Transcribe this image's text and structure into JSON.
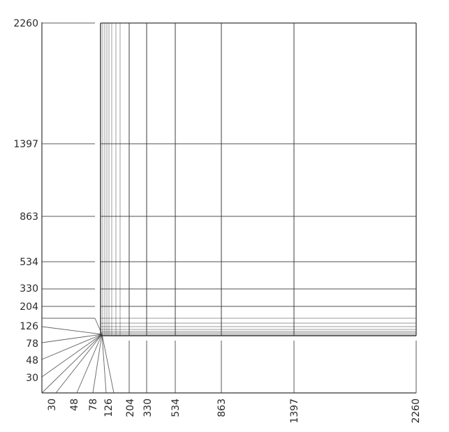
{
  "diagram": {
    "y_labels": [
      "2260",
      "1397",
      "863",
      "534",
      "330",
      "204",
      "126",
      "78",
      "48",
      "30"
    ],
    "x_labels": [
      "30",
      "48",
      "78",
      "126",
      "204",
      "330",
      "534",
      "863",
      "1397",
      "2260"
    ],
    "colors": {
      "ink": "#2a2a2a",
      "grid": "#3c3c3c",
      "paper": "#ffffff"
    }
  }
}
